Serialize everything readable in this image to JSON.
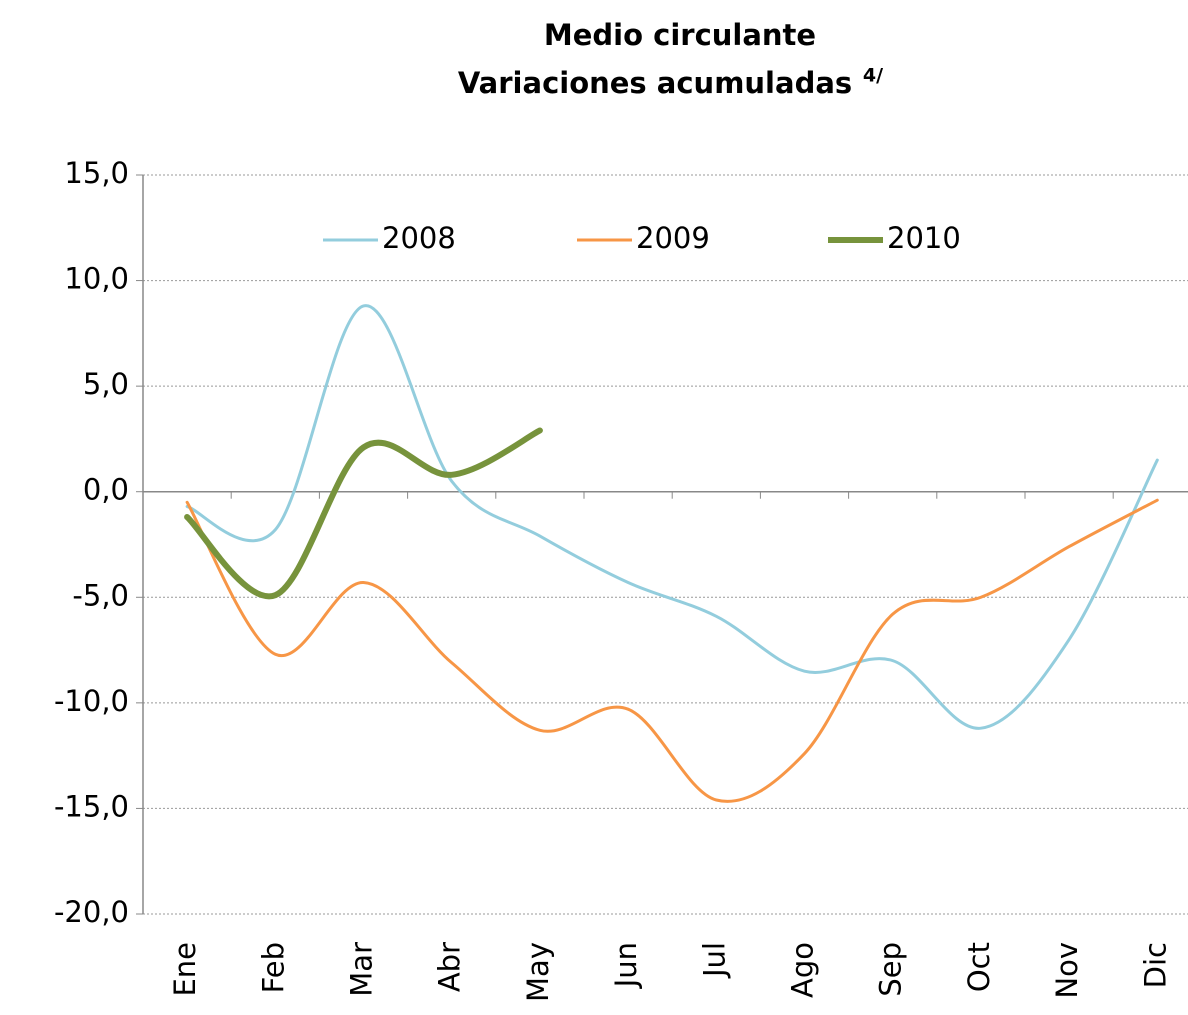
{
  "chart_data": {
    "type": "line",
    "title": "Medio circulante",
    "subtitle": "Variaciones acumuladas",
    "subtitle_note": "4/",
    "categories": [
      "Ene",
      "Feb",
      "Mar",
      "Abr",
      "May",
      "Jun",
      "Jul",
      "Ago",
      "Sep",
      "Oct",
      "Nov",
      "Dic"
    ],
    "series": [
      {
        "name": "2008",
        "color": "#93cddd",
        "width": 3,
        "values": [
          -0.7,
          -1.8,
          8.8,
          0.5,
          -2.1,
          -4.3,
          -5.9,
          -8.5,
          -8.0,
          -11.2,
          -7.0,
          1.5
        ]
      },
      {
        "name": "2009",
        "color": "#f79646",
        "width": 3,
        "values": [
          -0.5,
          -7.7,
          -4.3,
          -8.1,
          -11.3,
          -10.3,
          -14.6,
          -12.4,
          -5.8,
          -5.0,
          -2.6,
          -0.4
        ]
      },
      {
        "name": "2010",
        "color": "#77933c",
        "width": 6,
        "values": [
          -1.2,
          -4.9,
          2.1,
          0.8,
          2.9,
          null,
          null,
          null,
          null,
          null,
          null,
          null
        ]
      }
    ],
    "ylim": [
      -20,
      15
    ],
    "yticks": [
      {
        "value": -20,
        "label": "-20,0"
      },
      {
        "value": -15,
        "label": "-15,0"
      },
      {
        "value": -10,
        "label": "-10,0"
      },
      {
        "value": -5,
        "label": "-5,0"
      },
      {
        "value": 0,
        "label": "0,0"
      },
      {
        "value": 5,
        "label": "5,0"
      },
      {
        "value": 10,
        "label": "10,0"
      },
      {
        "value": 15,
        "label": "15,0"
      }
    ],
    "grid": true,
    "legend": "top"
  }
}
